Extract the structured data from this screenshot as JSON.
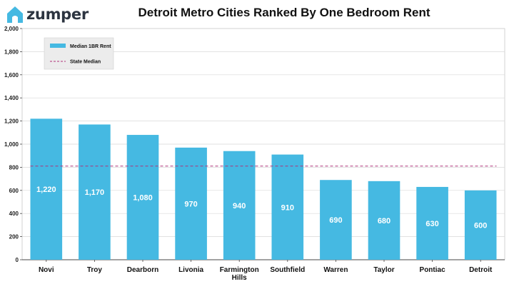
{
  "brand": {
    "logo_text": "zumper"
  },
  "colors": {
    "bar": "#45b9e2",
    "state_median_line": "#b0327a",
    "grid": "#d9d9d9",
    "logo_icon": "#45b9e2"
  },
  "chart_data": {
    "type": "bar",
    "title": "Detroit Metro Cities Ranked By One Bedroom Rent",
    "categories": [
      "Novi",
      "Troy",
      "Dearborn",
      "Livonia",
      "Farmington Hills",
      "Southfield",
      "Warren",
      "Taylor",
      "Pontiac",
      "Detroit"
    ],
    "category_labels": [
      [
        "Novi"
      ],
      [
        "Troy"
      ],
      [
        "Dearborn"
      ],
      [
        "Livonia"
      ],
      [
        "Farmington",
        "Hills"
      ],
      [
        "Southfield"
      ],
      [
        "Warren"
      ],
      [
        "Taylor"
      ],
      [
        "Pontiac"
      ],
      [
        "Detroit"
      ]
    ],
    "series": [
      {
        "name": "Median 1BR Rent",
        "values": [
          1220,
          1170,
          1080,
          970,
          940,
          910,
          690,
          680,
          630,
          600
        ]
      }
    ],
    "value_labels": [
      "1,220",
      "1,170",
      "1,080",
      "970",
      "940",
      "910",
      "690",
      "680",
      "630",
      "600"
    ],
    "reference_line": {
      "name": "State Median",
      "value": 810
    },
    "ylim": [
      0,
      2000
    ],
    "yticks": [
      0,
      200,
      400,
      600,
      800,
      1000,
      1200,
      1400,
      1600,
      1800,
      2000
    ],
    "ytick_labels": [
      "0",
      "200",
      "400",
      "600",
      "800",
      "1,000",
      "1,200",
      "1,400",
      "1,600",
      "1,800",
      "2,000"
    ],
    "grid": true,
    "legend_position": "top-left"
  }
}
